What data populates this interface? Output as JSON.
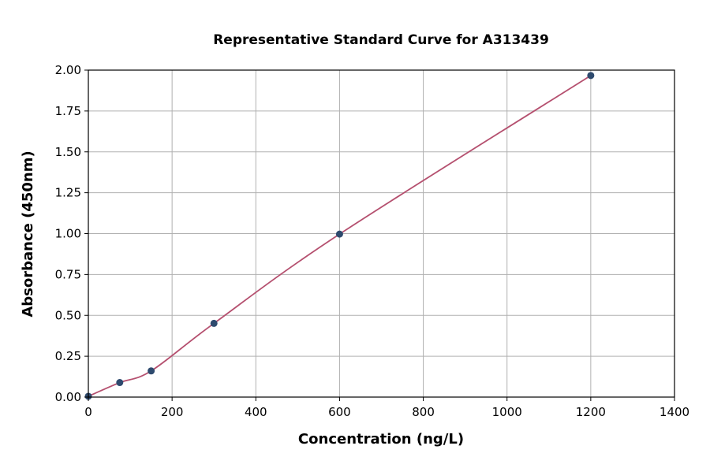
{
  "chart_data": {
    "type": "scatter",
    "title": "Representative Standard Curve for A313439",
    "xlabel": "Concentration (ng/L)",
    "ylabel": "Absorbance (450nm)",
    "xlim": [
      0,
      1400
    ],
    "ylim": [
      0,
      2.0
    ],
    "xticks": [
      "0",
      "200",
      "400",
      "600",
      "800",
      "1000",
      "1200",
      "1400"
    ],
    "yticks": [
      "0.00",
      "0.25",
      "0.50",
      "0.75",
      "1.00",
      "1.25",
      "1.50",
      "1.75",
      "2.00"
    ],
    "grid": true,
    "points": [
      {
        "x": 0,
        "y": 0.005
      },
      {
        "x": 75,
        "y": 0.089
      },
      {
        "x": 150,
        "y": 0.16
      },
      {
        "x": 300,
        "y": 0.451
      },
      {
        "x": 600,
        "y": 0.997
      },
      {
        "x": 1200,
        "y": 1.967
      }
    ],
    "colors": {
      "points": "#2e4a6e",
      "curve": "#b5506f",
      "grid": "#b0b0b0"
    }
  }
}
